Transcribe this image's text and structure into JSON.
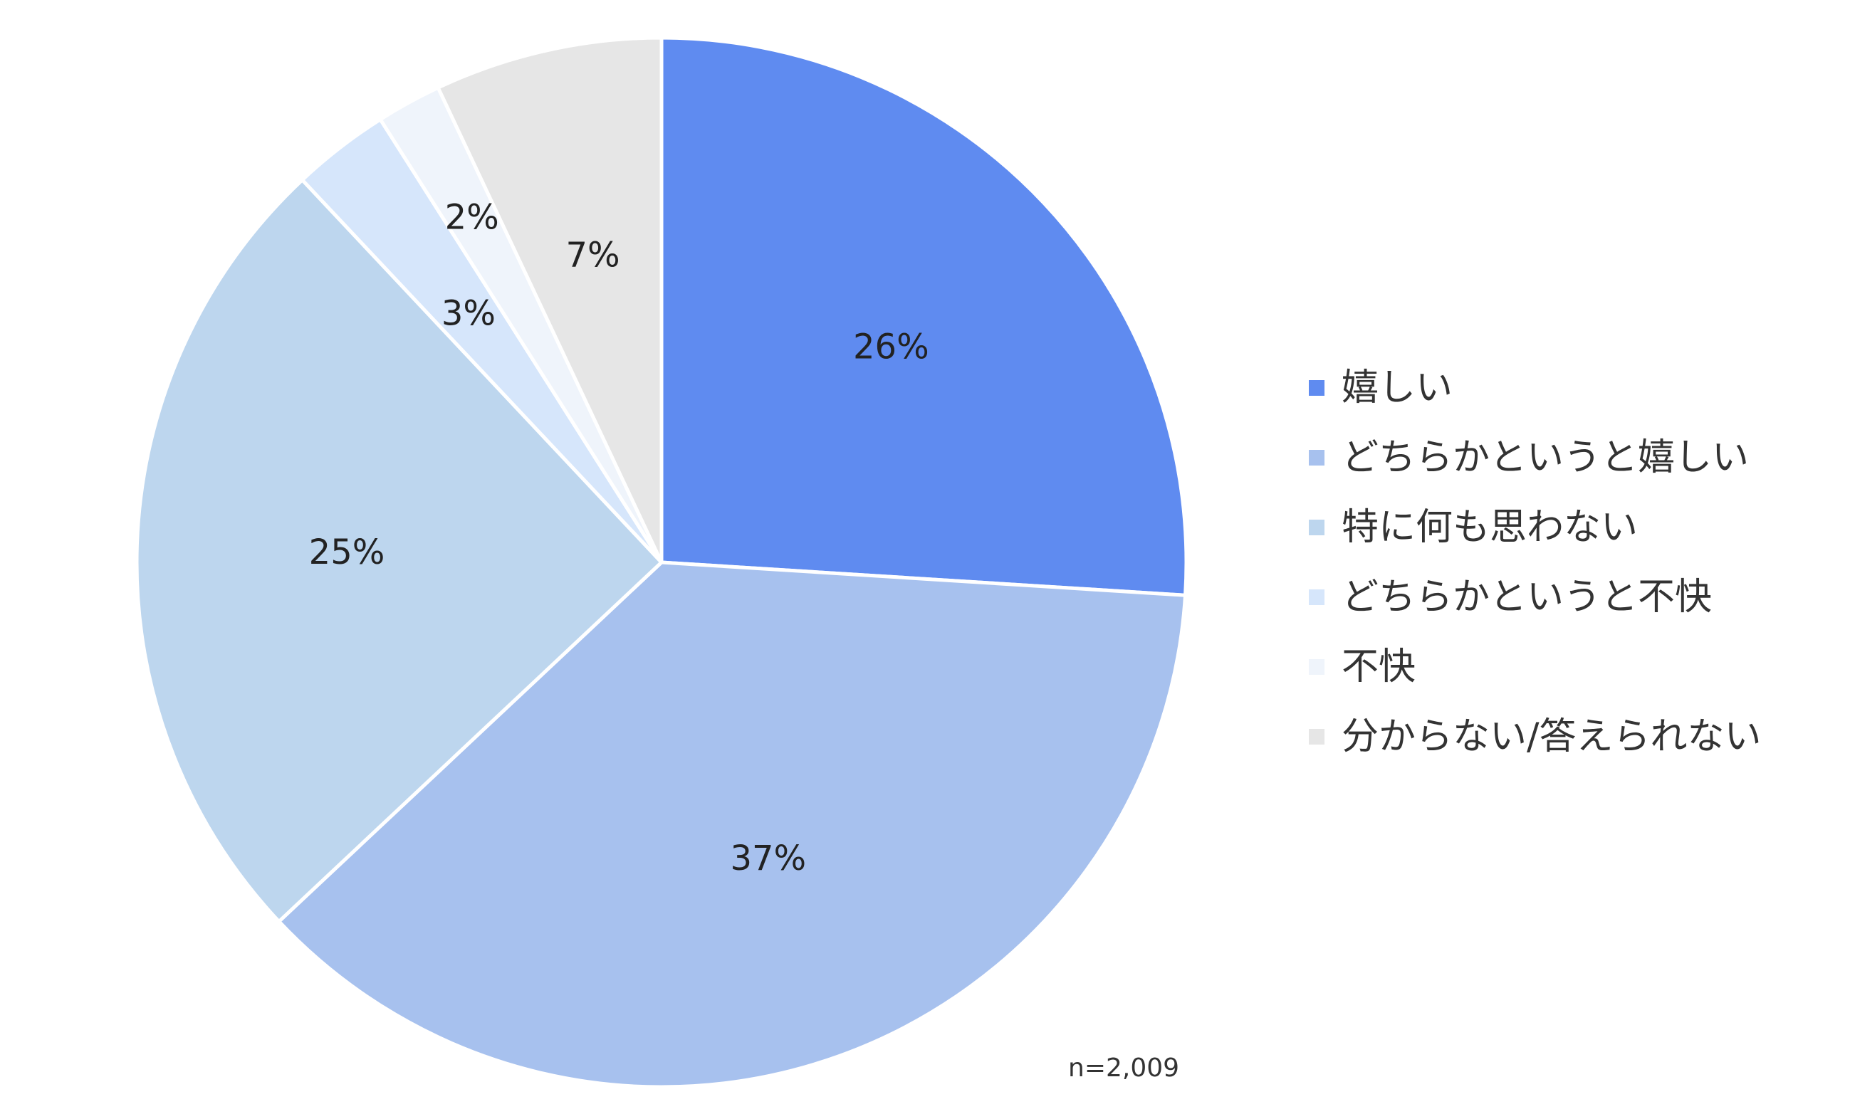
{
  "chart_data": {
    "type": "pie",
    "note": "n=2,009",
    "legend_position": "right",
    "slices": [
      {
        "label": "嬉しい",
        "value": 26,
        "display": "26%",
        "color": "#5F8BF0"
      },
      {
        "label": "どちらかというと嬉しい",
        "value": 37,
        "display": "37%",
        "color": "#A7C1EE"
      },
      {
        "label": "特に何も思わない",
        "value": 25,
        "display": "25%",
        "color": "#BDD6EE"
      },
      {
        "label": "どちらかというと不快",
        "value": 3,
        "display": "3%",
        "color": "#D6E6FB"
      },
      {
        "label": "不快",
        "value": 2,
        "display": "2%",
        "color": "#EFF4FB"
      },
      {
        "label": "分からない/答えられない",
        "value": 7,
        "display": "7%",
        "color": "#E6E6E6"
      }
    ]
  }
}
